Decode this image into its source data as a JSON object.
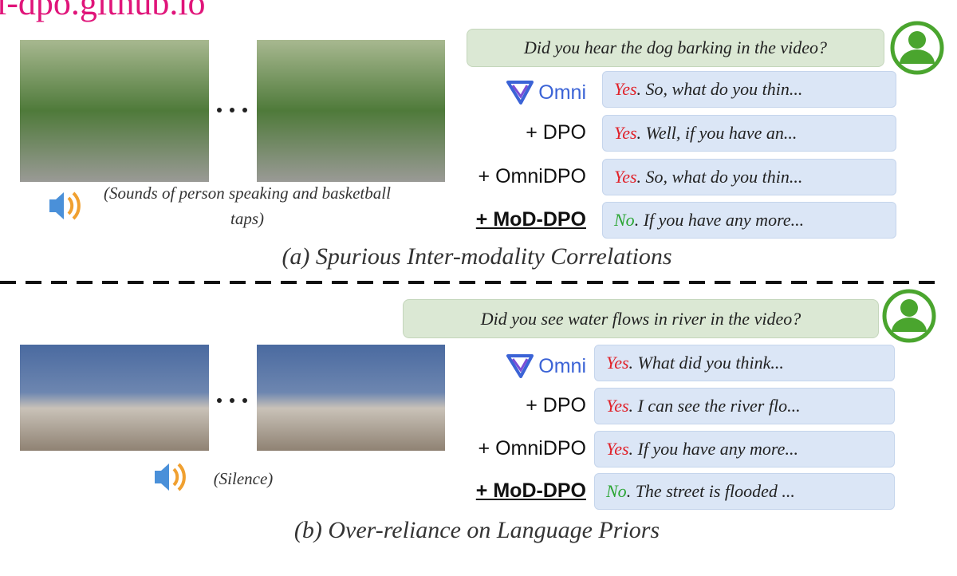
{
  "header": {
    "url": "l-dpo.github.io"
  },
  "panels": [
    {
      "question": "Did you hear the dog barking in the video?",
      "audio_caption": "(Sounds of person speaking and basketball taps)",
      "rows": [
        {
          "model": "Omni",
          "answer": "Yes",
          "text": ". So, what do you thin..."
        },
        {
          "model": "+ DPO",
          "answer": "Yes",
          "text": ". Well, if you have an..."
        },
        {
          "model": "+ OmniDPO",
          "answer": "Yes",
          "text": ". So, what do you thin..."
        },
        {
          "model": "+ MoD-DPO",
          "answer": "No",
          "text": ". If you have any more..."
        }
      ],
      "caption": "(a) Spurious Inter-modality Correlations"
    },
    {
      "question": "Did you see water flows in river in the video?",
      "audio_caption": "(Silence)",
      "rows": [
        {
          "model": "Omni",
          "answer": "Yes",
          "text": ". What did you think..."
        },
        {
          "model": "+ DPO",
          "answer": "Yes",
          "text": ". I can see the river flo..."
        },
        {
          "model": "+ OmniDPO",
          "answer": "Yes",
          "text": ". If you have any more..."
        },
        {
          "model": "+ MoD-DPO",
          "answer": "No",
          "text": ". The street is flooded ..."
        }
      ],
      "caption": "(b) Over-reliance on Language Priors"
    }
  ]
}
